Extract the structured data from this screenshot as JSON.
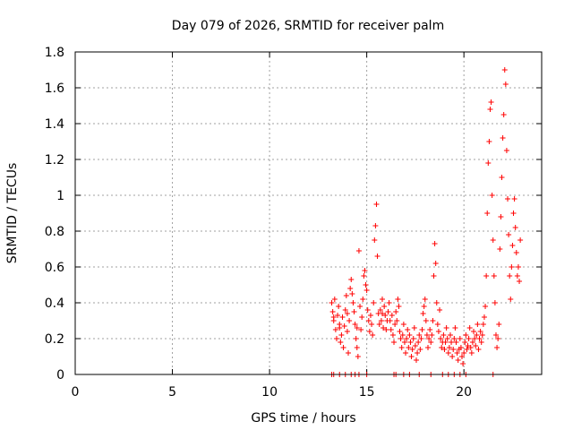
{
  "chart_data": {
    "type": "scatter",
    "title": "Day 079 of 2026, SRMTID for receiver palm",
    "xlabel": "GPS time / hours",
    "ylabel": "SRMTID / TECUs",
    "xlim": [
      0,
      24
    ],
    "ylim": [
      0,
      1.8
    ],
    "xticks": [
      0,
      5,
      10,
      15,
      20
    ],
    "xtick_labels": [
      "0",
      "5",
      "10",
      "15",
      "20"
    ],
    "yticks": [
      0,
      0.2,
      0.4,
      0.6,
      0.8,
      1.0,
      1.2,
      1.4,
      1.6,
      1.8
    ],
    "ytick_labels": [
      "0",
      "0.2",
      "0.4",
      "0.6",
      "0.8",
      "1",
      "1.2",
      "1.4",
      "1.6",
      "1.8"
    ],
    "grid": true,
    "marker": "+",
    "color": "#ff0000",
    "series": [
      {
        "name": "SRMTID",
        "points": [
          [
            13.2,
            0.0
          ],
          [
            13.3,
            0.0
          ],
          [
            13.6,
            0.0
          ],
          [
            13.9,
            0.0
          ],
          [
            14.2,
            0.0
          ],
          [
            14.4,
            0.0
          ],
          [
            14.6,
            0.0
          ],
          [
            15.0,
            0.0
          ],
          [
            16.4,
            0.0
          ],
          [
            16.5,
            0.0
          ],
          [
            16.9,
            0.0
          ],
          [
            17.2,
            0.0
          ],
          [
            17.7,
            0.0
          ],
          [
            18.3,
            0.0
          ],
          [
            18.9,
            0.0
          ],
          [
            19.2,
            0.0
          ],
          [
            19.5,
            0.0
          ],
          [
            19.8,
            0.0
          ],
          [
            20.1,
            0.0
          ],
          [
            21.5,
            0.0
          ],
          [
            13.2,
            0.4
          ],
          [
            13.25,
            0.35
          ],
          [
            13.3,
            0.3
          ],
          [
            13.35,
            0.42
          ],
          [
            13.4,
            0.25
          ],
          [
            13.45,
            0.2
          ],
          [
            13.5,
            0.33
          ],
          [
            13.55,
            0.38
          ],
          [
            13.6,
            0.28
          ],
          [
            13.65,
            0.18
          ],
          [
            13.7,
            0.22
          ],
          [
            13.75,
            0.32
          ],
          [
            13.8,
            0.15
          ],
          [
            13.85,
            0.27
          ],
          [
            13.9,
            0.36
          ],
          [
            13.95,
            0.44
          ],
          [
            14.0,
            0.24
          ],
          [
            14.05,
            0.12
          ],
          [
            14.1,
            0.3
          ],
          [
            14.15,
            0.48
          ],
          [
            14.2,
            0.53
          ],
          [
            14.25,
            0.45
          ],
          [
            14.3,
            0.4
          ],
          [
            14.35,
            0.35
          ],
          [
            14.4,
            0.28
          ],
          [
            14.45,
            0.2
          ],
          [
            14.5,
            0.15
          ],
          [
            14.55,
            0.1
          ],
          [
            14.6,
            0.69
          ],
          [
            14.65,
            0.38
          ],
          [
            14.7,
            0.25
          ],
          [
            14.75,
            0.32
          ],
          [
            14.8,
            0.42
          ],
          [
            14.85,
            0.55
          ],
          [
            14.9,
            0.58
          ],
          [
            14.95,
            0.5
          ],
          [
            15.0,
            0.47
          ],
          [
            15.05,
            0.36
          ],
          [
            15.1,
            0.3
          ],
          [
            15.15,
            0.24
          ],
          [
            15.2,
            0.33
          ],
          [
            15.25,
            0.28
          ],
          [
            15.3,
            0.22
          ],
          [
            15.35,
            0.4
          ],
          [
            15.4,
            0.75
          ],
          [
            15.45,
            0.83
          ],
          [
            15.5,
            0.95
          ],
          [
            15.55,
            0.66
          ],
          [
            15.6,
            0.34
          ],
          [
            15.65,
            0.28
          ],
          [
            15.7,
            0.36
          ],
          [
            15.75,
            0.3
          ],
          [
            15.8,
            0.42
          ],
          [
            15.85,
            0.26
          ],
          [
            15.9,
            0.38
          ],
          [
            15.95,
            0.33
          ],
          [
            16.0,
            0.25
          ],
          [
            16.05,
            0.3
          ],
          [
            16.1,
            0.35
          ],
          [
            16.15,
            0.4
          ],
          [
            16.2,
            0.3
          ],
          [
            16.25,
            0.25
          ],
          [
            16.3,
            0.33
          ],
          [
            16.35,
            0.22
          ],
          [
            16.4,
            0.18
          ],
          [
            16.45,
            0.28
          ],
          [
            16.5,
            0.35
          ],
          [
            16.55,
            0.3
          ],
          [
            16.6,
            0.42
          ],
          [
            16.65,
            0.38
          ],
          [
            16.7,
            0.24
          ],
          [
            16.75,
            0.2
          ],
          [
            16.8,
            0.15
          ],
          [
            16.85,
            0.22
          ],
          [
            16.9,
            0.28
          ],
          [
            16.95,
            0.18
          ],
          [
            17.0,
            0.12
          ],
          [
            17.05,
            0.2
          ],
          [
            17.1,
            0.25
          ],
          [
            17.15,
            0.15
          ],
          [
            17.2,
            0.22
          ],
          [
            17.25,
            0.18
          ],
          [
            17.3,
            0.1
          ],
          [
            17.35,
            0.14
          ],
          [
            17.4,
            0.2
          ],
          [
            17.45,
            0.26
          ],
          [
            17.5,
            0.16
          ],
          [
            17.55,
            0.08
          ],
          [
            17.6,
            0.12
          ],
          [
            17.65,
            0.18
          ],
          [
            17.7,
            0.22
          ],
          [
            17.75,
            0.14
          ],
          [
            17.8,
            0.2
          ],
          [
            17.85,
            0.25
          ],
          [
            17.9,
            0.34
          ],
          [
            17.95,
            0.38
          ],
          [
            18.0,
            0.42
          ],
          [
            18.05,
            0.3
          ],
          [
            18.1,
            0.22
          ],
          [
            18.15,
            0.15
          ],
          [
            18.2,
            0.2
          ],
          [
            18.25,
            0.25
          ],
          [
            18.3,
            0.18
          ],
          [
            18.35,
            0.22
          ],
          [
            18.4,
            0.3
          ],
          [
            18.45,
            0.55
          ],
          [
            18.5,
            0.73
          ],
          [
            18.55,
            0.62
          ],
          [
            18.6,
            0.4
          ],
          [
            18.65,
            0.28
          ],
          [
            18.7,
            0.24
          ],
          [
            18.75,
            0.36
          ],
          [
            18.8,
            0.2
          ],
          [
            18.85,
            0.15
          ],
          [
            18.9,
            0.18
          ],
          [
            18.95,
            0.22
          ],
          [
            19.0,
            0.14
          ],
          [
            19.05,
            0.18
          ],
          [
            19.1,
            0.26
          ],
          [
            19.15,
            0.2
          ],
          [
            19.2,
            0.12
          ],
          [
            19.25,
            0.15
          ],
          [
            19.3,
            0.22
          ],
          [
            19.35,
            0.18
          ],
          [
            19.4,
            0.1
          ],
          [
            19.45,
            0.14
          ],
          [
            19.5,
            0.2
          ],
          [
            19.55,
            0.26
          ],
          [
            19.6,
            0.18
          ],
          [
            19.65,
            0.12
          ],
          [
            19.7,
            0.08
          ],
          [
            19.75,
            0.14
          ],
          [
            19.8,
            0.2
          ],
          [
            19.85,
            0.15
          ],
          [
            19.9,
            0.1
          ],
          [
            19.95,
            0.06
          ],
          [
            20.0,
            0.12
          ],
          [
            20.05,
            0.18
          ],
          [
            20.1,
            0.22
          ],
          [
            20.15,
            0.14
          ],
          [
            20.2,
            0.16
          ],
          [
            20.25,
            0.2
          ],
          [
            20.3,
            0.26
          ],
          [
            20.35,
            0.15
          ],
          [
            20.4,
            0.12
          ],
          [
            20.45,
            0.18
          ],
          [
            20.5,
            0.24
          ],
          [
            20.55,
            0.2
          ],
          [
            20.6,
            0.16
          ],
          [
            20.65,
            0.22
          ],
          [
            20.7,
            0.28
          ],
          [
            20.75,
            0.14
          ],
          [
            20.8,
            0.2
          ],
          [
            20.85,
            0.24
          ],
          [
            20.9,
            0.18
          ],
          [
            20.95,
            0.22
          ],
          [
            21.0,
            0.28
          ],
          [
            21.05,
            0.32
          ],
          [
            21.1,
            0.38
          ],
          [
            21.15,
            0.55
          ],
          [
            21.2,
            0.9
          ],
          [
            21.25,
            1.18
          ],
          [
            21.3,
            1.3
          ],
          [
            21.35,
            1.48
          ],
          [
            21.4,
            1.52
          ],
          [
            21.45,
            1.0
          ],
          [
            21.5,
            0.75
          ],
          [
            21.55,
            0.55
          ],
          [
            21.6,
            0.4
          ],
          [
            21.65,
            0.22
          ],
          [
            21.7,
            0.15
          ],
          [
            21.75,
            0.2
          ],
          [
            21.8,
            0.28
          ],
          [
            21.85,
            0.7
          ],
          [
            21.9,
            0.88
          ],
          [
            21.95,
            1.1
          ],
          [
            22.0,
            1.32
          ],
          [
            22.05,
            1.45
          ],
          [
            22.1,
            1.7
          ],
          [
            22.15,
            1.62
          ],
          [
            22.2,
            1.25
          ],
          [
            22.25,
            0.98
          ],
          [
            22.3,
            0.78
          ],
          [
            22.35,
            0.55
          ],
          [
            22.4,
            0.42
          ],
          [
            22.45,
            0.6
          ],
          [
            22.5,
            0.72
          ],
          [
            22.55,
            0.9
          ],
          [
            22.6,
            0.98
          ],
          [
            22.65,
            0.82
          ],
          [
            22.7,
            0.68
          ],
          [
            22.75,
            0.55
          ],
          [
            22.8,
            0.6
          ],
          [
            22.85,
            0.52
          ],
          [
            22.9,
            0.75
          ],
          [
            13.3,
            0.32
          ],
          [
            13.6,
            0.26
          ],
          [
            14.0,
            0.34
          ],
          [
            14.5,
            0.26
          ],
          [
            15.8,
            0.34
          ]
        ]
      }
    ]
  }
}
